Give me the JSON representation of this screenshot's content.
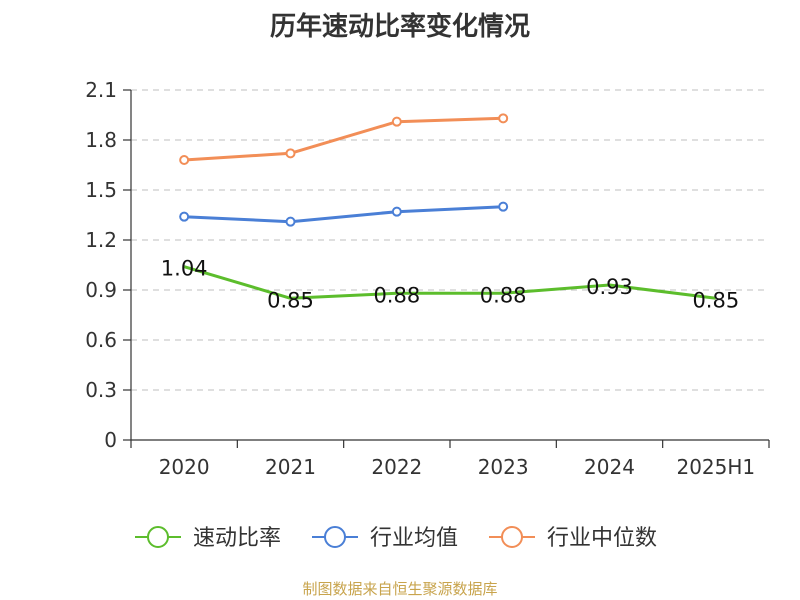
{
  "title": "历年速动比率变化情况",
  "source": "制图数据来自恒生聚源数据库",
  "chart_data": {
    "type": "line",
    "title": "历年速动比率变化情况",
    "categories": [
      "2020",
      "2021",
      "2022",
      "2023",
      "2024",
      "2025H1"
    ],
    "ylim": [
      0,
      2.1
    ],
    "yticks": [
      "0",
      "0.3",
      "0.6",
      "0.9",
      "1.2",
      "1.5",
      "1.8",
      "2.1"
    ],
    "grid": true,
    "legend_position": "bottom",
    "series": [
      {
        "name": "速动比率",
        "color": "#5cbd2c",
        "values": [
          1.04,
          0.85,
          0.88,
          0.88,
          0.93,
          0.85
        ],
        "labels": [
          "1.04",
          "0.85",
          "0.88",
          "0.88",
          "0.93",
          "0.85"
        ],
        "markers": false
      },
      {
        "name": "行业均值",
        "color": "#4a7fd6",
        "values": [
          1.34,
          1.31,
          1.37,
          1.4,
          null,
          null
        ],
        "markers": true
      },
      {
        "name": "行业中位数",
        "color": "#f28e57",
        "values": [
          1.68,
          1.72,
          1.91,
          1.93,
          null,
          null
        ],
        "markers": true
      }
    ]
  }
}
